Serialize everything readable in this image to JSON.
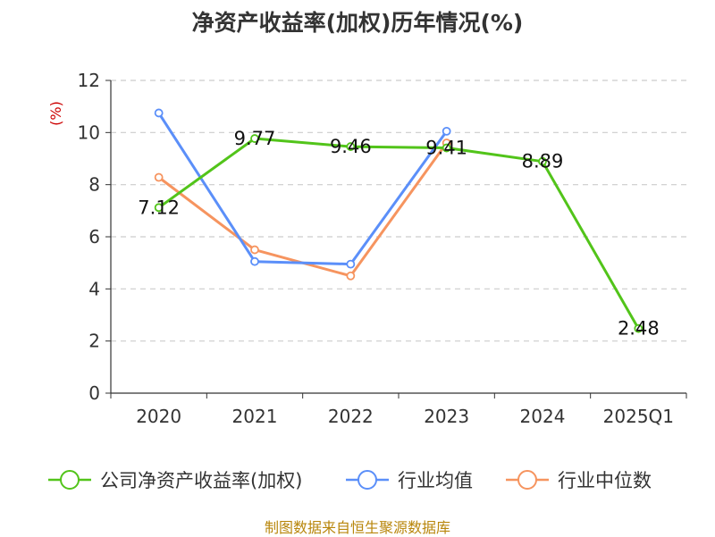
{
  "title": "净资产收益率(加权)历年情况(%)",
  "source": "制图数据来自恒生聚源数据库",
  "chart_data": {
    "type": "line",
    "title": "净资产收益率(加权)历年情况(%)",
    "ylabel": "(%)",
    "ylim": [
      0,
      12
    ],
    "yticks": [
      0,
      2,
      4,
      6,
      8,
      10,
      12
    ],
    "categories": [
      "2020",
      "2021",
      "2022",
      "2023",
      "2024",
      "2025Q1"
    ],
    "grid": true,
    "legend_position": "bottom",
    "series": [
      {
        "name": "公司净资产收益率(加权)",
        "color": "#52c41a",
        "labels": true,
        "values": [
          7.12,
          9.77,
          9.46,
          9.41,
          8.89,
          2.48
        ]
      },
      {
        "name": "行业均值",
        "color": "#5b8ff9",
        "labels": false,
        "values": [
          10.75,
          5.05,
          4.95,
          10.05,
          null,
          null
        ]
      },
      {
        "name": "行业中位数",
        "color": "#f6945f",
        "labels": false,
        "values": [
          8.28,
          5.5,
          4.5,
          9.6,
          null,
          null
        ]
      }
    ]
  }
}
